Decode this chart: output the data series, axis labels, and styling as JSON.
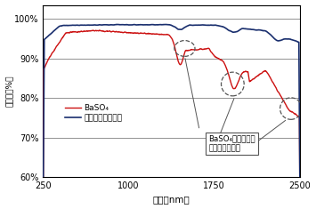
{
  "title": "",
  "xlabel": "波長（nm）",
  "ylabel": "反射率（%）",
  "xlim": [
    250,
    2500
  ],
  "ylim": [
    0.6,
    1.035
  ],
  "yticks": [
    0.6,
    0.7,
    0.8,
    0.9,
    1.0
  ],
  "ytick_labels": [
    "60%",
    "70%",
    "80%",
    "90%",
    "100%"
  ],
  "xticks": [
    250,
    1000,
    1750,
    2500
  ],
  "xtick_labels": [
    "250",
    "1000",
    "1750",
    "2500"
  ],
  "legend_fluorine": "フッ素系特殊樹脂",
  "legend_baso4": "BaSO₄",
  "annotation_text": "BaSO₄に含まれる\n水の吸収ピーク",
  "fluorine_color": "#1a2f6e",
  "baso4_color": "#cc1111",
  "background_color": "#ffffff",
  "border_color": "#000000",
  "grid_color": "#000000",
  "annotation_color": "#555555"
}
